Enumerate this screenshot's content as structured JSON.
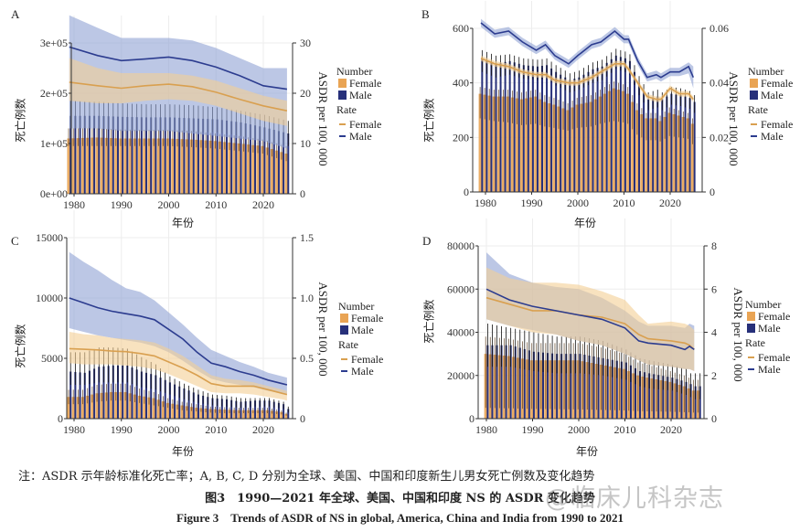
{
  "caption": {
    "note": "注：ASDR 示年龄标准化死亡率；A, B, C, D 分别为全球、美国、中国和印度新生儿男女死亡例数及变化趋势",
    "title_cn": "图3　1990—2021 年全球、美国、中国和印度 NS 的 ASDR 变化趋势",
    "title_en": "Figure 3　Trends of ASDR of NS in global, America, China and India from 1990 to 2021"
  },
  "watermark": "@临床儿科杂志",
  "colors": {
    "female_bar": "#e9a454",
    "male_bar": "#27307a",
    "female_line": "#d9a050",
    "male_line": "#2c3c8f",
    "female_band": "#f3cf94",
    "male_band": "#8fa2d4",
    "grid": "#ededed"
  },
  "chart_data": [
    {
      "panel": "A",
      "type": "bar+line",
      "ylabel": "死亡例数",
      "y2label": "ASDR per 100, 000",
      "xlabel": "年份",
      "ylim": [
        0,
        300000
      ],
      "y2lim": [
        0,
        30
      ],
      "left_ticks": [
        "0e+00",
        "1e+05",
        "2e+05",
        "3e+05"
      ],
      "right_ticks": [
        "0",
        "10",
        "20",
        "30"
      ],
      "x_ticks": [
        "1980",
        "1990",
        "2000",
        "2010",
        "2020"
      ],
      "legend": {
        "number": "Number",
        "rate": "Rate",
        "female": "Female",
        "male": "Male"
      },
      "years": [
        1979,
        1985,
        1990,
        1995,
        2000,
        2005,
        2010,
        2015,
        2020,
        2025
      ],
      "female_number": [
        110000,
        112000,
        110000,
        110000,
        110000,
        108000,
        105000,
        100000,
        95000,
        80000
      ],
      "female_number_lo": [
        95000,
        95000,
        95000,
        95000,
        95000,
        93000,
        90000,
        85000,
        80000,
        65000
      ],
      "female_number_hi": [
        130000,
        130000,
        128000,
        127000,
        127000,
        125000,
        120000,
        115000,
        108000,
        95000
      ],
      "male_number": [
        155000,
        155000,
        153000,
        152000,
        152000,
        150000,
        148000,
        142000,
        132000,
        120000
      ],
      "male_number_lo": [
        130000,
        128000,
        125000,
        125000,
        125000,
        123000,
        122000,
        115000,
        105000,
        95000
      ],
      "male_number_hi": [
        185000,
        183000,
        180000,
        178000,
        178000,
        176000,
        172000,
        165000,
        157000,
        145000
      ],
      "female_rate": [
        22.2,
        21.5,
        21,
        21.5,
        21.8,
        21.3,
        20.2,
        18.8,
        17.5,
        16.5
      ],
      "female_rate_lo": [
        18.5,
        18,
        18,
        18.5,
        18.8,
        18.5,
        17.5,
        16,
        14.5,
        13.5
      ],
      "female_rate_hi": [
        27,
        25,
        24,
        24,
        24,
        23.5,
        22.5,
        21,
        19.5,
        18.5
      ],
      "male_rate": [
        29.2,
        27.5,
        26.5,
        26.8,
        27.2,
        26.5,
        25.2,
        23.5,
        21.5,
        20.8
      ],
      "male_rate_lo": [
        13,
        13,
        12.5,
        12.5,
        12.5,
        12,
        11.5,
        11,
        10.5,
        9
      ],
      "male_rate_hi": [
        35.5,
        33,
        31,
        31,
        31,
        30.5,
        29,
        27,
        25,
        25
      ]
    },
    {
      "panel": "B",
      "type": "bar+line",
      "ylabel": "死亡例数",
      "y2label": "ASDR per 100, 000",
      "xlabel": "年份",
      "ylim": [
        0,
        600
      ],
      "y2lim": [
        0,
        0.06
      ],
      "left_ticks": [
        "0",
        "200",
        "400",
        "600"
      ],
      "right_ticks": [
        "0",
        "0.02",
        "0.04",
        "0.06"
      ],
      "x_ticks": [
        "1980",
        "1990",
        "2000",
        "2010",
        "2020"
      ],
      "legend": {
        "number": "Number",
        "rate": "Rate",
        "female": "Female",
        "male": "Male"
      },
      "years": [
        1979,
        1982,
        1985,
        1988,
        1991,
        1993,
        1995,
        1998,
        2000,
        2003,
        2005,
        2008,
        2010,
        2011,
        2013,
        2015,
        2017,
        2018,
        2020,
        2022,
        2024,
        2025
      ],
      "female_number": [
        360,
        350,
        350,
        340,
        350,
        330,
        320,
        300,
        320,
        330,
        350,
        380,
        370,
        360,
        300,
        270,
        270,
        260,
        290,
        280,
        270,
        250
      ],
      "female_number_lo": [
        270,
        260,
        255,
        245,
        250,
        240,
        235,
        225,
        235,
        240,
        250,
        260,
        255,
        250,
        210,
        190,
        190,
        185,
        205,
        200,
        195,
        175
      ],
      "female_number_hi": [
        385,
        375,
        375,
        365,
        375,
        355,
        345,
        325,
        345,
        355,
        375,
        405,
        395,
        385,
        325,
        290,
        290,
        280,
        310,
        300,
        290,
        270
      ],
      "male_number": [
        490,
        470,
        480,
        465,
        460,
        465,
        440,
        410,
        420,
        450,
        460,
        500,
        490,
        480,
        400,
        340,
        350,
        340,
        360,
        355,
        345,
        330
      ],
      "male_number_lo": [
        440,
        420,
        430,
        415,
        410,
        415,
        390,
        365,
        375,
        400,
        410,
        450,
        440,
        430,
        355,
        300,
        310,
        300,
        320,
        315,
        305,
        290
      ],
      "male_number_hi": [
        520,
        500,
        505,
        490,
        485,
        490,
        465,
        435,
        445,
        475,
        485,
        525,
        515,
        505,
        425,
        365,
        375,
        365,
        385,
        380,
        370,
        355
      ],
      "female_rate": [
        0.049,
        0.047,
        0.046,
        0.044,
        0.043,
        0.043,
        0.041,
        0.04,
        0.04,
        0.042,
        0.044,
        0.047,
        0.047,
        0.045,
        0.04,
        0.035,
        0.034,
        0.034,
        0.038,
        0.036,
        0.036,
        0.034
      ],
      "female_rate_lo": [
        0.048,
        0.046,
        0.045,
        0.043,
        0.042,
        0.042,
        0.04,
        0.039,
        0.039,
        0.041,
        0.043,
        0.046,
        0.046,
        0.044,
        0.039,
        0.034,
        0.033,
        0.033,
        0.037,
        0.035,
        0.035,
        0.033
      ],
      "female_rate_hi": [
        0.05,
        0.048,
        0.047,
        0.045,
        0.044,
        0.044,
        0.042,
        0.041,
        0.041,
        0.043,
        0.045,
        0.048,
        0.048,
        0.046,
        0.041,
        0.036,
        0.035,
        0.035,
        0.039,
        0.037,
        0.037,
        0.035
      ],
      "male_rate": [
        0.062,
        0.058,
        0.059,
        0.055,
        0.052,
        0.054,
        0.05,
        0.047,
        0.05,
        0.054,
        0.055,
        0.059,
        0.056,
        0.056,
        0.048,
        0.042,
        0.043,
        0.042,
        0.044,
        0.044,
        0.046,
        0.042
      ],
      "male_rate_lo": [
        0.0605,
        0.0565,
        0.0575,
        0.0535,
        0.0505,
        0.0525,
        0.0485,
        0.0455,
        0.0485,
        0.0525,
        0.0535,
        0.0575,
        0.0545,
        0.0545,
        0.0465,
        0.0405,
        0.0415,
        0.0405,
        0.0425,
        0.0425,
        0.0435,
        0.038
      ],
      "male_rate_hi": [
        0.0635,
        0.0595,
        0.0605,
        0.0565,
        0.0535,
        0.0555,
        0.0515,
        0.0485,
        0.0515,
        0.0555,
        0.0565,
        0.0605,
        0.0575,
        0.0575,
        0.0495,
        0.0435,
        0.0445,
        0.0435,
        0.0455,
        0.0455,
        0.0475,
        0.046
      ]
    },
    {
      "panel": "C",
      "type": "bar+line",
      "ylabel": "死亡例数",
      "y2label": "ASDR per 100, 000",
      "xlabel": "年份",
      "ylim": [
        0,
        15000
      ],
      "y2lim": [
        0,
        1.5
      ],
      "left_ticks": [
        "0",
        "5000",
        "10000",
        "15000"
      ],
      "right_ticks": [
        "0",
        "0.5",
        "1.0",
        "1.5"
      ],
      "x_ticks": [
        "1980",
        "1990",
        "2000",
        "2010",
        "2020"
      ],
      "legend": {
        "number": "Number",
        "rate": "Rate",
        "female": "Female",
        "male": "Male"
      },
      "years": [
        1979,
        1982,
        1985,
        1988,
        1991,
        1994,
        1997,
        2000,
        2003,
        2006,
        2009,
        2012,
        2015,
        2018,
        2021,
        2024,
        2025
      ],
      "female_number": [
        1800,
        1800,
        2100,
        2200,
        2200,
        1900,
        1700,
        1300,
        1100,
        900,
        800,
        750,
        700,
        700,
        700,
        550,
        400
      ],
      "female_number_lo": [
        1200,
        1200,
        1400,
        1500,
        1500,
        1300,
        1100,
        900,
        700,
        600,
        500,
        450,
        450,
        450,
        450,
        350,
        250
      ],
      "female_number_hi": [
        2400,
        2400,
        2800,
        2900,
        2900,
        2500,
        2200,
        1700,
        1400,
        1200,
        1000,
        950,
        900,
        900,
        900,
        700,
        500
      ],
      "male_number": [
        3900,
        3800,
        4300,
        4400,
        4400,
        3900,
        3600,
        3000,
        2500,
        2000,
        1700,
        1600,
        1400,
        1500,
        1500,
        1200,
        800
      ],
      "male_number_lo": [
        2800,
        2800,
        3000,
        3000,
        3000,
        2600,
        2400,
        2000,
        1600,
        1300,
        1100,
        1000,
        900,
        1000,
        1000,
        800,
        500
      ],
      "male_number_hi": [
        5500,
        5500,
        5900,
        5900,
        5800,
        5100,
        4500,
        3500,
        2900,
        2400,
        2000,
        1900,
        1700,
        1700,
        1700,
        1400,
        1000
      ],
      "female_rate": [
        0.58,
        0.575,
        0.57,
        0.56,
        0.555,
        0.54,
        0.52,
        0.47,
        0.42,
        0.36,
        0.29,
        0.27,
        0.27,
        0.27,
        0.24,
        0.21,
        0.2
      ],
      "female_rate_lo": [
        0.46,
        0.45,
        0.45,
        0.45,
        0.44,
        0.43,
        0.41,
        0.37,
        0.32,
        0.27,
        0.22,
        0.21,
        0.21,
        0.2,
        0.18,
        0.16,
        0.15
      ],
      "female_rate_hi": [
        0.72,
        0.7,
        0.69,
        0.67,
        0.66,
        0.65,
        0.63,
        0.58,
        0.52,
        0.44,
        0.36,
        0.33,
        0.32,
        0.3,
        0.27,
        0.24,
        0.23
      ],
      "male_rate": [
        1.0,
        0.96,
        0.92,
        0.89,
        0.87,
        0.85,
        0.82,
        0.74,
        0.66,
        0.55,
        0.46,
        0.43,
        0.39,
        0.36,
        0.32,
        0.29,
        0.28
      ],
      "male_rate_lo": [
        0.75,
        0.72,
        0.69,
        0.67,
        0.65,
        0.63,
        0.6,
        0.55,
        0.48,
        0.4,
        0.33,
        0.3,
        0.28,
        0.26,
        0.23,
        0.21,
        0.2
      ],
      "male_rate_hi": [
        1.38,
        1.3,
        1.23,
        1.15,
        1.08,
        1.05,
        0.98,
        0.88,
        0.78,
        0.67,
        0.57,
        0.52,
        0.47,
        0.43,
        0.38,
        0.35,
        0.34
      ]
    },
    {
      "panel": "D",
      "type": "bar+line",
      "ylabel": "死亡例数",
      "y2label": "ASDR per 100, 000",
      "xlabel": "年份",
      "ylim": [
        0,
        80000
      ],
      "y2lim": [
        0,
        8
      ],
      "left_ticks": [
        "0",
        "20000",
        "40000",
        "60000",
        "80000"
      ],
      "right_ticks": [
        "0",
        "2",
        "4",
        "6",
        "8"
      ],
      "x_ticks": [
        "1980",
        "1990",
        "2000",
        "2010",
        "2020"
      ],
      "legend": {
        "number": "Number",
        "rate": "Rate",
        "female": "Female",
        "male": "Male"
      },
      "years": [
        1980,
        1985,
        1990,
        1995,
        2000,
        2005,
        2010,
        2013,
        2015,
        2020,
        2023,
        2024,
        2025
      ],
      "female_number": [
        30000,
        29000,
        27000,
        27000,
        27000,
        25000,
        23000,
        20000,
        19000,
        17000,
        15000,
        14000,
        13000
      ],
      "female_number_lo": [
        5000,
        4800,
        4500,
        4400,
        4300,
        4100,
        3800,
        3500,
        3400,
        3200,
        3000,
        2900,
        2800
      ],
      "female_number_hi": [
        38000,
        37000,
        35000,
        35000,
        35000,
        33000,
        30000,
        26000,
        25000,
        22000,
        20000,
        19000,
        18000
      ],
      "male_number": [
        34000,
        34000,
        31000,
        30000,
        30000,
        28000,
        26000,
        22000,
        21000,
        19000,
        17000,
        16000,
        15000
      ],
      "male_number_lo": [
        24000,
        24000,
        22000,
        21000,
        21000,
        20000,
        18000,
        15000,
        14000,
        13000,
        11000,
        10000,
        9000
      ],
      "male_number_hi": [
        44000,
        42000,
        40000,
        38000,
        38000,
        36000,
        32000,
        28000,
        27000,
        25000,
        23000,
        21000,
        21000
      ],
      "female_rate": [
        5.6,
        5.3,
        5.0,
        5.0,
        4.8,
        4.7,
        4.4,
        3.9,
        3.7,
        3.6,
        3.5,
        3.4,
        3.2
      ],
      "female_rate_lo": [
        4.6,
        4.3,
        4.0,
        3.9,
        3.6,
        3.4,
        3.0,
        2.7,
        2.5,
        2.4,
        2.3,
        2.3,
        2.2
      ],
      "female_rate_hi": [
        7.0,
        6.5,
        6.3,
        6.3,
        6.2,
        5.9,
        5.5,
        4.8,
        4.4,
        4.5,
        4.4,
        4.3,
        4.1
      ],
      "male_rate": [
        6.0,
        5.5,
        5.2,
        5.0,
        4.8,
        4.6,
        4.2,
        3.6,
        3.5,
        3.4,
        3.2,
        3.35,
        3.2
      ],
      "male_rate_lo": [
        4.6,
        4.3,
        4.1,
        3.9,
        3.6,
        3.4,
        3.0,
        2.7,
        2.5,
        2.4,
        2.3,
        2.3,
        2.2
      ],
      "male_rate_hi": [
        7.7,
        6.7,
        6.3,
        6.1,
        6.0,
        5.6,
        5.0,
        4.5,
        4.3,
        4.3,
        4.2,
        4.4,
        4.3
      ]
    }
  ]
}
